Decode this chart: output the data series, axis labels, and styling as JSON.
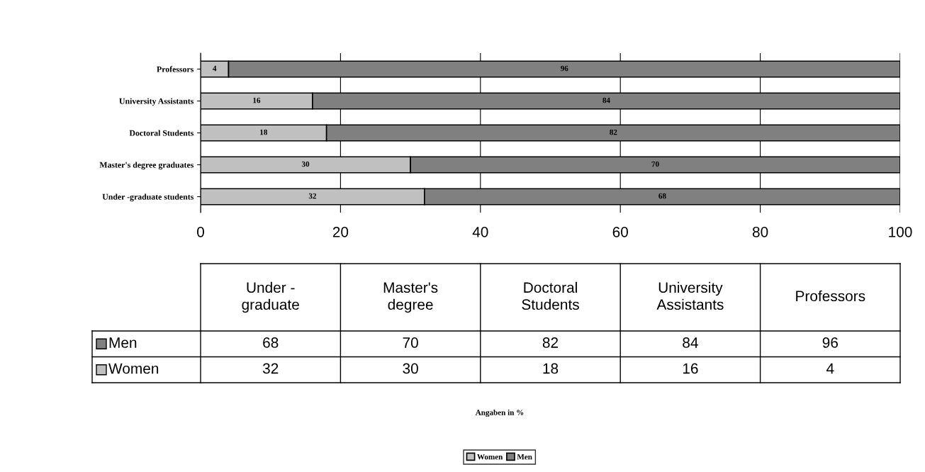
{
  "chart_data": [
    {
      "type": "bar",
      "orientation": "horizontal",
      "stacked": true,
      "categories": [
        "Professors",
        "University Assistants",
        "Doctoral Students",
        "Master's degree graduates",
        "Under -graduate students"
      ],
      "series": [
        {
          "name": "Women",
          "color": "#c0c0c0",
          "values": [
            4,
            16,
            18,
            30,
            32
          ]
        },
        {
          "name": "Men",
          "color": "#808080",
          "values": [
            96,
            84,
            82,
            70,
            68
          ]
        }
      ],
      "data_labels": true,
      "xlim": [
        0,
        100
      ],
      "xticks": [
        0,
        20,
        40,
        60,
        80,
        100
      ],
      "annotations": [
        "Angaben in %"
      ],
      "grid": "x",
      "legend": "bottom"
    },
    {
      "type": "other",
      "categories": [
        "Under -\ngraduate",
        "Master's\ndegree",
        "Doctoral\nStudents",
        "University\nAssistants",
        "Professors"
      ],
      "series": [
        {
          "name": "Men",
          "color": "#808080",
          "values": [
            68,
            70,
            82,
            84,
            96
          ]
        },
        {
          "name": "Women",
          "color": "#c0c0c0",
          "values": [
            32,
            30,
            18,
            16,
            4
          ]
        }
      ],
      "data_labels": true
    }
  ]
}
